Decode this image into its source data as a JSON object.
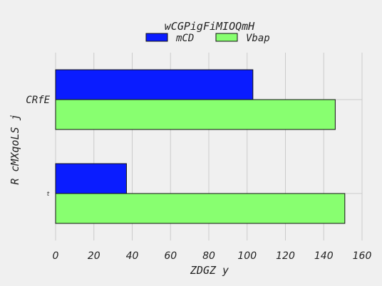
{
  "chart_data": {
    "type": "bar",
    "orientation": "horizontal",
    "title": "wCGPigFiMIOQmH",
    "xlabel": "ZDGZ  y",
    "ylabel": "R cMXqoLS j",
    "categories": [
      "CRfE",
      "t"
    ],
    "series": [
      {
        "name": "mCD",
        "values": [
          103,
          37
        ],
        "color": "#0a1cff"
      },
      {
        "name": "Vbap",
        "values": [
          146,
          151
        ],
        "color": "#88ff70"
      }
    ],
    "xlim": [
      0,
      160
    ],
    "xticks": [
      "0",
      "20",
      "40",
      "60",
      "80",
      "100",
      "120",
      "140",
      "160"
    ],
    "grid": true,
    "legend": "top-center",
    "colors": {
      "background": "#f0f0f0",
      "grid": "#cbcbcb",
      "edge": "#111111"
    }
  }
}
